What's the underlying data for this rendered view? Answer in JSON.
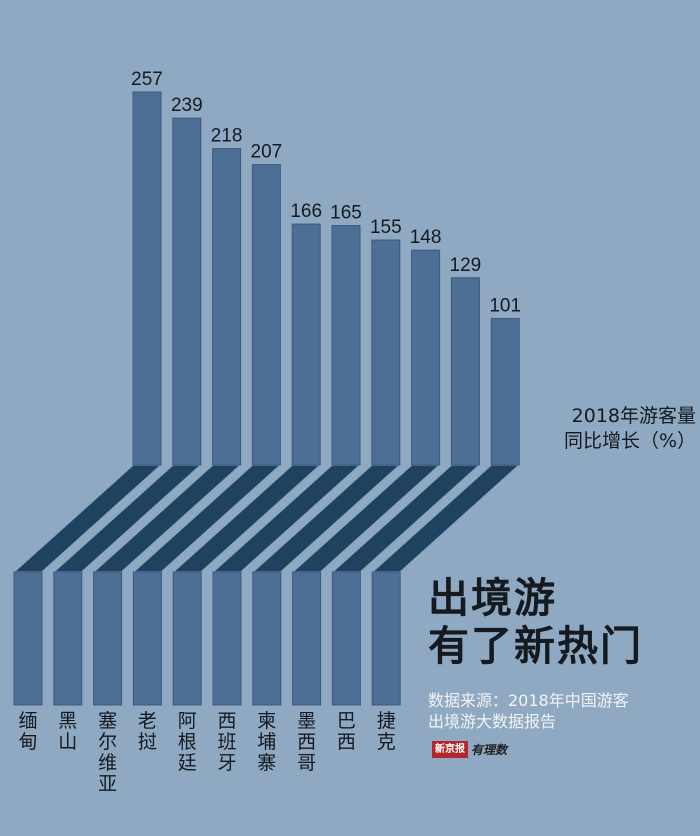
{
  "title_lines": [
    "出境游",
    "有了新热门"
  ],
  "series_label_lines": [
    "2018年游客量",
    "同比增长（%）"
  ],
  "source_lines": [
    "数据来源：2018年中国游客",
    "出境游大数据报告"
  ],
  "logo": {
    "box_text": "新京报",
    "script_text": "有理数"
  },
  "colors": {
    "background": "#8fa9c3",
    "bar": "#4d6f96",
    "bar_edge": "#3b5a7e",
    "connector": "#1f4260",
    "connector_edge": "#89a6c2",
    "text_dark": "#141a20",
    "text_light": "#f1f4f7"
  },
  "chart_data": {
    "type": "bar",
    "title": "出境游 有了新热门",
    "ylabel": "2018年游客量同比增长（%）",
    "xlabel": "",
    "categories": [
      "缅甸",
      "黑山",
      "塞尔维亚",
      "老挝",
      "阿根廷",
      "西班牙",
      "柬埔寨",
      "墨西哥",
      "巴西",
      "捷克"
    ],
    "values": [
      257,
      239,
      218,
      207,
      166,
      165,
      155,
      148,
      129,
      101
    ],
    "ylim": [
      0,
      257
    ],
    "grid": false,
    "legend": "none"
  }
}
